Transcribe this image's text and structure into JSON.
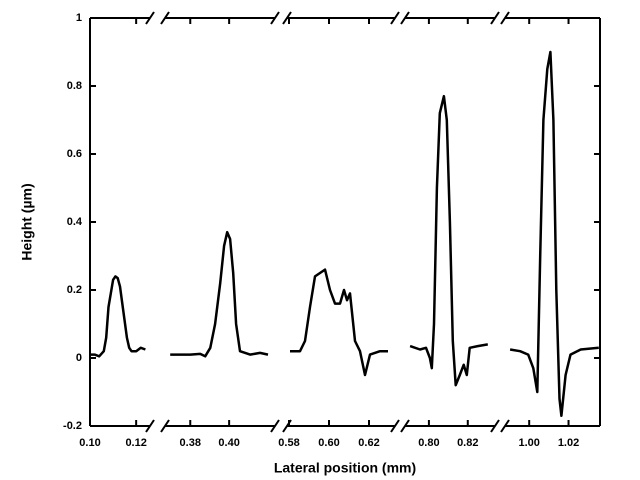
{
  "chart_data": {
    "type": "line",
    "color": "#000000",
    "xlabel": "Lateral position (mm)",
    "ylabel": "Height (µm)",
    "ylim": [
      -0.2,
      1
    ],
    "yticks": [
      -0.2,
      0,
      0.2,
      0.4,
      0.6,
      0.8,
      1
    ],
    "segments": [
      {
        "xlim": [
          0.1,
          0.126
        ],
        "xticks": [
          {
            "value": 0.1,
            "label": "0.10"
          },
          {
            "value": 0.12,
            "label": "0.12"
          }
        ],
        "x": [
          0.1,
          0.102,
          0.104,
          0.106,
          0.107,
          0.108,
          0.109,
          0.11,
          0.111,
          0.112,
          0.113,
          0.114,
          0.115,
          0.116,
          0.117,
          0.118,
          0.12,
          0.122,
          0.124
        ],
        "values": [
          0.01,
          0.01,
          0.005,
          0.02,
          0.06,
          0.15,
          0.19,
          0.23,
          0.24,
          0.235,
          0.21,
          0.16,
          0.11,
          0.06,
          0.03,
          0.02,
          0.02,
          0.03,
          0.025
        ]
      },
      {
        "xlim": [
          0.367,
          0.4236
        ],
        "xticks": [
          {
            "value": 0.38,
            "label": "0.38"
          },
          {
            "value": 0.4,
            "label": "0.40"
          }
        ],
        "x": [
          0.3697,
          0.38,
          0.3851,
          0.3877,
          0.3903,
          0.3928,
          0.3954,
          0.3974,
          0.399,
          0.4005,
          0.4021,
          0.4036,
          0.4056,
          0.4108,
          0.4159,
          0.42
        ],
        "values": [
          0.01,
          0.01,
          0.012,
          0.005,
          0.03,
          0.1,
          0.22,
          0.33,
          0.37,
          0.35,
          0.25,
          0.1,
          0.02,
          0.01,
          0.015,
          0.01
        ]
      },
      {
        "xlim": [
          0.579,
          0.633
        ],
        "xticks": [
          {
            "value": 0.58,
            "label": "0.58"
          },
          {
            "value": 0.6,
            "label": "0.60"
          },
          {
            "value": 0.62,
            "label": "0.62"
          }
        ],
        "x": [
          0.5805,
          0.5855,
          0.588,
          0.5905,
          0.593,
          0.5955,
          0.598,
          0.6005,
          0.603,
          0.6055,
          0.6075,
          0.609,
          0.6105,
          0.613,
          0.6155,
          0.618,
          0.6205,
          0.6255,
          0.6295
        ],
        "values": [
          0.02,
          0.02,
          0.05,
          0.15,
          0.24,
          0.25,
          0.26,
          0.2,
          0.16,
          0.16,
          0.2,
          0.17,
          0.19,
          0.05,
          0.02,
          -0.05,
          0.01,
          0.02,
          0.02
        ]
      },
      {
        "xlim": [
          0.7877,
          0.834
        ],
        "xticks": [
          {
            "value": 0.8,
            "label": "0.80"
          },
          {
            "value": 0.82,
            "label": "0.82"
          }
        ],
        "x": [
          0.7903,
          0.7954,
          0.7985,
          0.8005,
          0.8015,
          0.8026,
          0.8041,
          0.8056,
          0.8077,
          0.8092,
          0.8108,
          0.8123,
          0.8138,
          0.8159,
          0.8179,
          0.8195,
          0.821,
          0.8251,
          0.8303
        ],
        "values": [
          0.035,
          0.025,
          0.03,
          0.0,
          -0.03,
          0.1,
          0.5,
          0.72,
          0.77,
          0.7,
          0.4,
          0.05,
          -0.08,
          -0.05,
          -0.02,
          -0.05,
          0.03,
          0.035,
          0.04
        ]
      },
      {
        "xlim": [
          0.9877,
          1.036
        ],
        "xticks": [
          {
            "value": 1.0,
            "label": "1.00"
          },
          {
            "value": 1.02,
            "label": "1.02"
          }
        ],
        "x": [
          0.9903,
          0.9954,
          0.9995,
          1.0021,
          1.0041,
          1.0056,
          1.0072,
          1.0092,
          1.0108,
          1.0123,
          1.0138,
          1.0154,
          1.0164,
          1.0185,
          1.021,
          1.0262,
          1.0354
        ],
        "values": [
          0.025,
          0.02,
          0.01,
          -0.03,
          -0.1,
          0.3,
          0.7,
          0.85,
          0.9,
          0.7,
          0.2,
          -0.12,
          -0.17,
          -0.05,
          0.01,
          0.025,
          0.03
        ]
      }
    ]
  }
}
